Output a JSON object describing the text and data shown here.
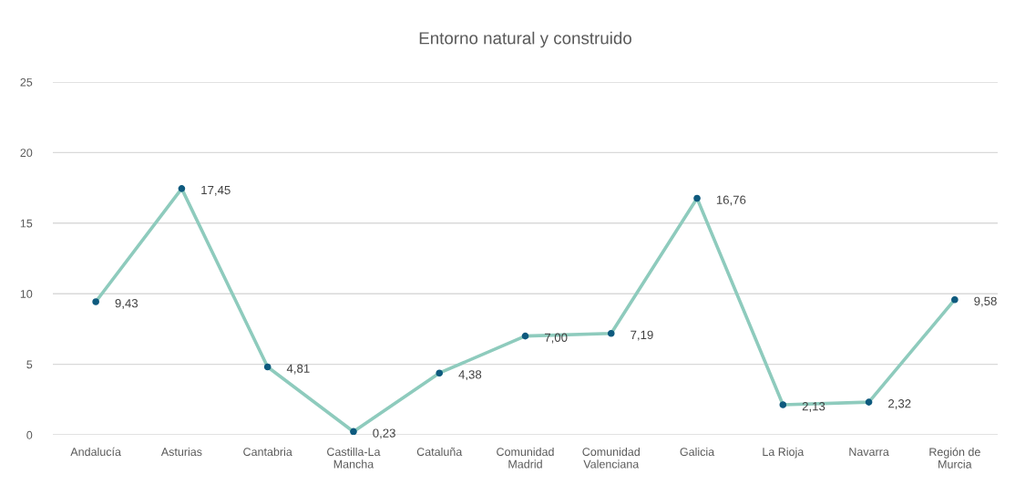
{
  "chart_data": {
    "type": "line",
    "title": "Entorno natural y construido",
    "categories": [
      "Andalucía",
      "Asturias",
      "Cantabria",
      "Castilla-La Mancha",
      "Cataluña",
      "Comunidad Madrid",
      "Comunidad Valenciana",
      "Galicia",
      "La Rioja",
      "Navarra",
      "Región de Murcia"
    ],
    "series": [
      {
        "color": "#8ecbbd",
        "colors": [
          "#0e5a7e",
          "#0e5a7e",
          "#0e5a7e",
          "#0e5a7e",
          "#0e5a7e",
          "#0e5a7e",
          "#0e5a7e",
          "#0e5a7e",
          "#0e5a7e",
          "#0e5a7e",
          "#0e5a7e"
        ],
        "values": [
          9.43,
          17.45,
          4.81,
          0.23,
          4.38,
          7.0,
          7.19,
          16.76,
          2.13,
          2.32,
          9.58
        ],
        "value_labels": [
          "9,43",
          "17,45",
          "4,81",
          "0,23",
          "4,38",
          "7,00",
          "7,19",
          "16,76",
          "2,13",
          "2,32",
          "9,58"
        ]
      }
    ],
    "ylim": [
      0,
      25
    ],
    "yticks": [
      0,
      5,
      10,
      15,
      20,
      25
    ],
    "grid": "y",
    "marker": "circle",
    "line_style": "solid"
  }
}
